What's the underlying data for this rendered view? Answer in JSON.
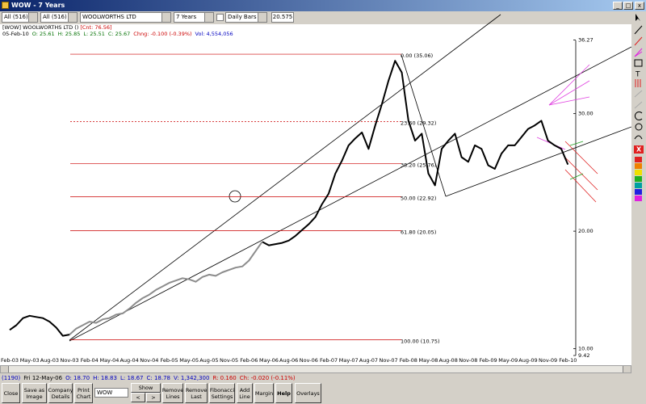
{
  "window": {
    "title": "WOW - 7 Years"
  },
  "toolbar": {
    "list1": "All (516)",
    "list2": "All (516)",
    "company": "WOOLWORTHS LTD",
    "period": "7 Years",
    "bars": "Daily Bars",
    "price": "20.575"
  },
  "info": {
    "header": "[WOW] WOOLWORTHS LTD ()",
    "count": "[Cnt: 76.56]",
    "quote": [
      "05-Feb-10",
      "O: 25.61",
      "H: 25.85",
      "L: 25.51",
      "C: 25.67",
      "Chng: -0.100 (-0.39%)",
      "Vol: 4,554,056"
    ]
  },
  "chart_data": {
    "type": "line",
    "categories": [
      "Feb-03",
      null,
      null,
      "May-03",
      null,
      null,
      "Aug-03",
      null,
      null,
      "Nov-03",
      null,
      null,
      "Feb-04",
      null,
      null,
      "May-04",
      null,
      null,
      "Aug-04",
      null,
      null,
      "Nov-04",
      null,
      null,
      "Feb-05",
      null,
      null,
      "May-05",
      null,
      null,
      "Aug-05",
      null,
      null,
      "Nov-05",
      null,
      null,
      "Feb-06",
      null,
      null,
      "May-06",
      null,
      null,
      "Aug-06",
      null,
      null,
      "Nov-06",
      null,
      null,
      "Feb-07",
      null,
      null,
      "May-07",
      null,
      null,
      "Aug-07",
      null,
      null,
      "Nov-07",
      null,
      null,
      "Feb-08",
      null,
      null,
      "May-08",
      null,
      null,
      "Aug-08",
      null,
      null,
      "Nov-08",
      null,
      null,
      "Feb-09",
      null,
      null,
      "May-09",
      null,
      null,
      "Aug-09",
      null,
      null,
      "Nov-09",
      null,
      null,
      "Feb-10"
    ],
    "series": [
      {
        "color": "#000000",
        "values": [
          11.6,
          12.0,
          12.6,
          12.8,
          12.7,
          12.6,
          12.3,
          11.8,
          11.1,
          11.2,
          null,
          null,
          null,
          null,
          null,
          null,
          null,
          null,
          null,
          null,
          null,
          null,
          null,
          null,
          null,
          null,
          null,
          null,
          null,
          null,
          null,
          null,
          null,
          null,
          null,
          null,
          null,
          null,
          19.1,
          18.8,
          18.9,
          19.0,
          19.2,
          19.6,
          20.1,
          20.6,
          21.2,
          22.3,
          23.2,
          24.9,
          26.0,
          27.3,
          27.9,
          28.4,
          27.0,
          29.0,
          30.8,
          32.8,
          34.5,
          33.5,
          29.4,
          27.7,
          28.3,
          24.9,
          23.9,
          27.0,
          27.7,
          28.3,
          26.3,
          25.9,
          27.3,
          27.0,
          25.6,
          25.3,
          26.6,
          27.3,
          27.3,
          28.0,
          28.7,
          29.0,
          29.4,
          27.7,
          27.3,
          27.0,
          25.67
        ]
      },
      {
        "color": "#8c8c8c",
        "values": [
          null,
          null,
          null,
          null,
          null,
          null,
          null,
          null,
          null,
          11.2,
          11.7,
          12.0,
          12.3,
          12.2,
          12.5,
          12.6,
          12.9,
          13.0,
          13.4,
          13.9,
          14.3,
          14.6,
          15.0,
          15.3,
          15.6,
          15.8,
          16.0,
          15.9,
          15.7,
          16.1,
          16.3,
          16.2,
          16.5,
          16.7,
          16.9,
          17.0,
          17.5,
          18.3,
          19.1,
          null,
          null,
          null,
          null,
          null,
          null,
          null,
          null,
          null,
          null,
          null,
          null,
          null,
          null,
          null,
          null,
          null,
          null,
          null,
          null,
          null,
          null,
          null,
          null,
          null,
          null,
          null,
          null,
          null,
          null,
          null,
          null,
          null,
          null,
          null,
          null,
          null,
          null,
          null,
          null,
          null,
          null,
          null,
          null,
          null,
          null
        ]
      }
    ],
    "ylim": [
      9.42,
      37.4
    ],
    "yticks": [
      36.27,
      {
        "value": 30,
        "label": "30.00"
      },
      {
        "value": 20,
        "label": "20.00"
      },
      {
        "value": 10,
        "label": "10.00"
      },
      9.42
    ],
    "fib_color": "#cc0000",
    "fib_levels": [
      {
        "value": 35.06,
        "label": "0.00 (35.06)"
      },
      {
        "value": 29.32,
        "label": "23.60 (29.32)"
      },
      {
        "value": 25.76,
        "label": "38.20 (25.76)"
      },
      {
        "value": 22.92,
        "label": "50.00 (22.92)"
      },
      {
        "value": 20.05,
        "label": "61.80 (20.05)"
      },
      {
        "value": 10.75,
        "label": "100.00 (10.75)"
      }
    ]
  },
  "status": {
    "index": "(1190)",
    "fields": [
      "Fri 12-May-06",
      "O: 18.70",
      "H: 18.83",
      "L: 18.67",
      "C: 18.78",
      "V: 1,342,300",
      "R: 0.160",
      "Ch: -0.020 (-0.11%)"
    ]
  },
  "buttons": {
    "close": "Close",
    "save": "Save as Image",
    "details": "Company Details",
    "print": "Print Chart",
    "code": "WOW",
    "show": "Show",
    "prev": "<",
    "next": ">",
    "remove_lines": "Remove Lines",
    "remove_last": "Remove Last",
    "fib": "Fibonacci Settings",
    "add_line": "Add Line",
    "margin": "Margin",
    "help": "Help",
    "overlays": "Overlays"
  }
}
